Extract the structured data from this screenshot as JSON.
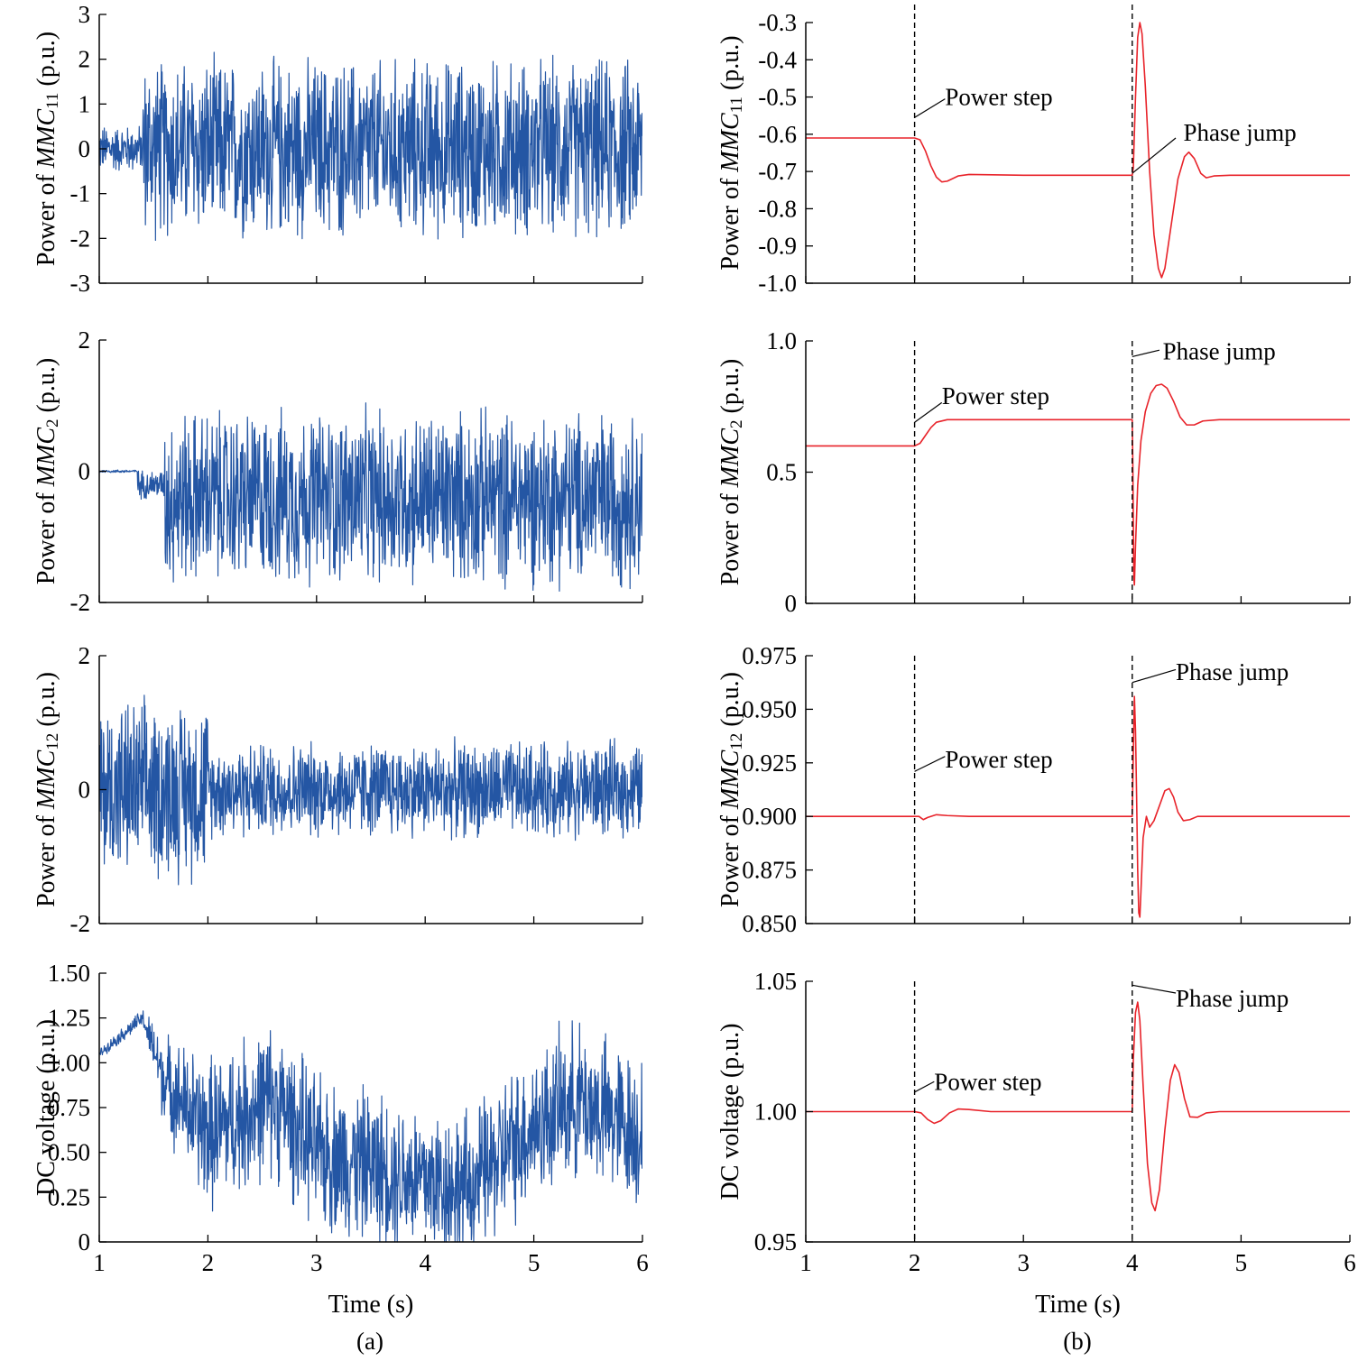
{
  "figure": {
    "panel_labels": [
      "(a)",
      "(b)"
    ],
    "colors": {
      "left_series": "#2456a4",
      "right_series": "#e8232a",
      "axis": "#000000"
    }
  },
  "chart_data": [
    {
      "type": "line",
      "id": "a1",
      "ylabel_prefix": "Power of ",
      "ylabel_italic": "MMC",
      "ylabel_sub": "11",
      "ylabel_suffix": " (p.u.)",
      "xlabel": "",
      "xlim": [
        1,
        6
      ],
      "ylim": [
        -3,
        3
      ],
      "xticks": [
        1,
        2,
        3,
        4,
        5,
        6
      ],
      "xtick_labels_shown": false,
      "yticks": [
        -3,
        -2,
        -1,
        0,
        1,
        2,
        3
      ],
      "ytick_labels": [
        "-3",
        "-2",
        "-1",
        "0",
        "1",
        "2",
        "3"
      ],
      "color": "#2456a4",
      "noise": {
        "segments": [
          {
            "x": [
              1.0,
              1.4
            ],
            "mean": 0.0,
            "amp": 1.2,
            "min": -1.8,
            "max": 1.5
          },
          {
            "x": [
              1.4,
              6.0
            ],
            "mean": 0.0,
            "amp": 4.5,
            "min": -2.8,
            "max": 2.8
          }
        ]
      }
    },
    {
      "type": "line",
      "id": "a2",
      "ylabel_prefix": "Power of ",
      "ylabel_italic": "MMC",
      "ylabel_sub": "2",
      "ylabel_suffix": " (p.u.)",
      "xlabel": "",
      "xlim": [
        1,
        6
      ],
      "ylim": [
        -2,
        2
      ],
      "xticks": [
        1,
        2,
        3,
        4,
        5,
        6
      ],
      "xtick_labels_shown": false,
      "yticks": [
        -2,
        0,
        2
      ],
      "ytick_labels": [
        "-2",
        "0",
        "2"
      ],
      "color": "#2456a4",
      "noise": {
        "segments": [
          {
            "x": [
              1.0,
              1.35
            ],
            "mean": 0.0,
            "amp": 0.05,
            "min": -2,
            "max": 2
          },
          {
            "x": [
              1.35,
              1.6
            ],
            "mean": -0.2,
            "amp": 0.5,
            "min": -2,
            "max": 2
          },
          {
            "x": [
              1.6,
              6.0
            ],
            "mean": -0.4,
            "amp": 3.0,
            "min": -2,
            "max": 2
          }
        ]
      }
    },
    {
      "type": "line",
      "id": "a3",
      "ylabel_prefix": "Power of ",
      "ylabel_italic": "MMC",
      "ylabel_sub": "12",
      "ylabel_suffix": " (p.u.)",
      "xlabel": "",
      "xlim": [
        1,
        6
      ],
      "ylim": [
        -2,
        2
      ],
      "xticks": [
        1,
        2,
        3,
        4,
        5,
        6
      ],
      "xtick_labels_shown": false,
      "yticks": [
        -2,
        0,
        2
      ],
      "ytick_labels": [
        "-2",
        "0",
        "2"
      ],
      "color": "#2456a4",
      "noise": {
        "segments": [
          {
            "x": [
              1.0,
              2.0
            ],
            "mean": 0.0,
            "amp": 3.0,
            "min": -2,
            "max": 2
          },
          {
            "x": [
              2.0,
              6.0
            ],
            "mean": 0.0,
            "amp": 1.6,
            "min": -2,
            "max": 2
          }
        ]
      }
    },
    {
      "type": "line",
      "id": "a4",
      "ylabel_prefix": "DC voltage (p.u.)",
      "ylabel_italic": "",
      "ylabel_sub": "",
      "ylabel_suffix": "",
      "xlabel": "Time (s)",
      "xlim": [
        1,
        6
      ],
      "ylim": [
        0,
        1.5
      ],
      "xticks": [
        1,
        2,
        3,
        4,
        5,
        6
      ],
      "xtick_labels_shown": true,
      "xtick_labels": [
        "1",
        "2",
        "3",
        "4",
        "5",
        "6"
      ],
      "yticks": [
        0,
        0.25,
        0.5,
        0.75,
        1.0,
        1.25,
        1.5
      ],
      "ytick_labels": [
        "0",
        "0.25",
        "0.50",
        "0.75",
        "1.00",
        "1.25",
        "1.50"
      ],
      "color": "#2456a4",
      "noise": {
        "trend": [
          [
            1.0,
            1.05
          ],
          [
            1.4,
            1.25
          ],
          [
            1.6,
            0.9
          ],
          [
            2.0,
            0.6
          ],
          [
            2.6,
            0.8
          ],
          [
            3.0,
            0.5
          ],
          [
            4.0,
            0.35
          ],
          [
            4.4,
            0.3
          ],
          [
            5.0,
            0.65
          ],
          [
            5.4,
            0.8
          ],
          [
            6.0,
            0.6
          ]
        ],
        "amp_points": [
          [
            1.0,
            0.03
          ],
          [
            1.4,
            0.06
          ],
          [
            1.6,
            0.3
          ],
          [
            2.0,
            0.5
          ],
          [
            6.0,
            0.5
          ]
        ],
        "min": 0.0,
        "max": 1.35
      }
    },
    {
      "type": "line",
      "id": "b1",
      "ylabel_prefix": "Power of ",
      "ylabel_italic": "MMC",
      "ylabel_sub": "11",
      "ylabel_suffix": " (p.u.)",
      "xlabel": "",
      "xlim": [
        1,
        6
      ],
      "ylim": [
        -1.0,
        -0.3
      ],
      "xticks": [
        1,
        2,
        3,
        4,
        5,
        6
      ],
      "xtick_labels_shown": false,
      "yticks": [
        -1.0,
        -0.9,
        -0.8,
        -0.7,
        -0.6,
        -0.5,
        -0.4,
        -0.3
      ],
      "ytick_labels": [
        "-1.0",
        "-0.9",
        "-0.8",
        "-0.7",
        "-0.6",
        "-0.5",
        "-0.4",
        "-0.3"
      ],
      "color": "#e8232a",
      "points": [
        [
          1.0,
          -0.61
        ],
        [
          2.0,
          -0.61
        ],
        [
          2.05,
          -0.615
        ],
        [
          2.1,
          -0.645
        ],
        [
          2.15,
          -0.685
        ],
        [
          2.2,
          -0.715
        ],
        [
          2.25,
          -0.728
        ],
        [
          2.3,
          -0.726
        ],
        [
          2.4,
          -0.712
        ],
        [
          2.5,
          -0.708
        ],
        [
          3.0,
          -0.71
        ],
        [
          4.0,
          -0.71
        ],
        [
          4.01,
          -0.69
        ],
        [
          4.03,
          -0.5
        ],
        [
          4.05,
          -0.34
        ],
        [
          4.07,
          -0.3
        ],
        [
          4.09,
          -0.33
        ],
        [
          4.12,
          -0.47
        ],
        [
          4.16,
          -0.7
        ],
        [
          4.2,
          -0.87
        ],
        [
          4.24,
          -0.96
        ],
        [
          4.27,
          -0.985
        ],
        [
          4.3,
          -0.96
        ],
        [
          4.35,
          -0.86
        ],
        [
          4.42,
          -0.72
        ],
        [
          4.48,
          -0.66
        ],
        [
          4.52,
          -0.648
        ],
        [
          4.57,
          -0.665
        ],
        [
          4.63,
          -0.705
        ],
        [
          4.68,
          -0.717
        ],
        [
          4.75,
          -0.712
        ],
        [
          4.9,
          -0.71
        ],
        [
          6.0,
          -0.71
        ]
      ],
      "vlines": [
        2,
        4
      ],
      "annotations": [
        {
          "text": "Power step",
          "x": 2.28,
          "y": -0.5,
          "leader": [
            [
              2.0,
              -0.555
            ],
            [
              2.28,
              -0.505
            ]
          ]
        },
        {
          "text": "Phase jump",
          "x": 4.47,
          "y": -0.595,
          "leader": [
            [
              4.0,
              -0.705
            ],
            [
              4.4,
              -0.61
            ]
          ]
        }
      ]
    },
    {
      "type": "line",
      "id": "b2",
      "ylabel_prefix": "Power of ",
      "ylabel_italic": "MMC",
      "ylabel_sub": "2",
      "ylabel_suffix": " (p.u.)",
      "xlabel": "",
      "xlim": [
        1,
        6
      ],
      "ylim": [
        0,
        1.0
      ],
      "xticks": [
        1,
        2,
        3,
        4,
        5,
        6
      ],
      "xtick_labels_shown": false,
      "yticks": [
        0,
        0.5,
        1.0
      ],
      "ytick_labels": [
        "0",
        "0.5",
        "1.0"
      ],
      "color": "#e8232a",
      "points": [
        [
          1.0,
          0.6
        ],
        [
          2.0,
          0.6
        ],
        [
          2.05,
          0.61
        ],
        [
          2.1,
          0.64
        ],
        [
          2.15,
          0.67
        ],
        [
          2.2,
          0.69
        ],
        [
          2.3,
          0.7
        ],
        [
          3.0,
          0.7
        ],
        [
          4.0,
          0.7
        ],
        [
          4.005,
          0.55
        ],
        [
          4.01,
          0.3
        ],
        [
          4.015,
          0.1
        ],
        [
          4.02,
          0.07
        ],
        [
          4.03,
          0.22
        ],
        [
          4.05,
          0.45
        ],
        [
          4.08,
          0.62
        ],
        [
          4.12,
          0.73
        ],
        [
          4.17,
          0.8
        ],
        [
          4.22,
          0.83
        ],
        [
          4.27,
          0.835
        ],
        [
          4.32,
          0.82
        ],
        [
          4.38,
          0.77
        ],
        [
          4.44,
          0.71
        ],
        [
          4.5,
          0.68
        ],
        [
          4.57,
          0.68
        ],
        [
          4.65,
          0.695
        ],
        [
          4.8,
          0.7
        ],
        [
          6.0,
          0.7
        ]
      ],
      "vlines": [
        2,
        4
      ],
      "annotations": [
        {
          "text": "Power step",
          "x": 2.25,
          "y": 0.79,
          "leader": [
            [
              2.0,
              0.69
            ],
            [
              2.25,
              0.765
            ]
          ]
        },
        {
          "text": "Phase jump",
          "x": 4.28,
          "y": 0.96,
          "leader": [
            [
              4.0,
              0.94
            ],
            [
              4.25,
              0.965
            ]
          ]
        }
      ]
    },
    {
      "type": "line",
      "id": "b3",
      "ylabel_prefix": "Power of ",
      "ylabel_italic": "MMC",
      "ylabel_sub": "12",
      "ylabel_suffix": " (p.u.)",
      "xlabel": "",
      "xlim": [
        1,
        6
      ],
      "ylim": [
        0.85,
        0.975
      ],
      "xticks": [
        1,
        2,
        3,
        4,
        5,
        6
      ],
      "xtick_labels_shown": false,
      "yticks": [
        0.85,
        0.875,
        0.9,
        0.925,
        0.95,
        0.975
      ],
      "ytick_labels": [
        "0.850",
        "0.875",
        "0.900",
        "0.925",
        "0.950",
        "0.975"
      ],
      "color": "#e8232a",
      "points": [
        [
          1.0,
          0.9
        ],
        [
          2.0,
          0.9
        ],
        [
          2.04,
          0.9
        ],
        [
          2.08,
          0.8985
        ],
        [
          2.12,
          0.8995
        ],
        [
          2.2,
          0.9008
        ],
        [
          2.3,
          0.9004
        ],
        [
          2.5,
          0.9
        ],
        [
          4.0,
          0.9
        ],
        [
          4.01,
          0.93
        ],
        [
          4.02,
          0.956
        ],
        [
          4.03,
          0.94
        ],
        [
          4.04,
          0.91
        ],
        [
          4.05,
          0.875
        ],
        [
          4.06,
          0.855
        ],
        [
          4.07,
          0.853
        ],
        [
          4.08,
          0.865
        ],
        [
          4.1,
          0.89
        ],
        [
          4.13,
          0.9
        ],
        [
          4.16,
          0.895
        ],
        [
          4.2,
          0.898
        ],
        [
          4.25,
          0.905
        ],
        [
          4.3,
          0.912
        ],
        [
          4.34,
          0.913
        ],
        [
          4.38,
          0.909
        ],
        [
          4.42,
          0.902
        ],
        [
          4.47,
          0.898
        ],
        [
          4.53,
          0.8985
        ],
        [
          4.6,
          0.9
        ],
        [
          4.8,
          0.9
        ],
        [
          6.0,
          0.9
        ]
      ],
      "vlines": [
        2,
        4
      ],
      "annotations": [
        {
          "text": "Power step",
          "x": 2.28,
          "y": 0.9265,
          "leader": [
            [
              2.0,
              0.921
            ],
            [
              2.28,
              0.928
            ]
          ]
        },
        {
          "text": "Phase jump",
          "x": 4.4,
          "y": 0.9675,
          "leader": [
            [
              4.0,
              0.9625
            ],
            [
              4.4,
              0.9685
            ]
          ]
        }
      ]
    },
    {
      "type": "line",
      "id": "b4",
      "ylabel_prefix": "DC voltage (p.u.)",
      "ylabel_italic": "",
      "ylabel_sub": "",
      "ylabel_suffix": "",
      "xlabel": "Time (s)",
      "xlim": [
        1,
        6
      ],
      "ylim": [
        0.95,
        1.05
      ],
      "xticks": [
        1,
        2,
        3,
        4,
        5,
        6
      ],
      "xtick_labels_shown": true,
      "xtick_labels": [
        "1",
        "2",
        "3",
        "4",
        "5",
        "6"
      ],
      "yticks": [
        0.95,
        1.0,
        1.05
      ],
      "ytick_labels": [
        "0.95",
        "1.00",
        "1.05"
      ],
      "color": "#e8232a",
      "points": [
        [
          1.0,
          1.0
        ],
        [
          2.0,
          1.0
        ],
        [
          2.06,
          0.9995
        ],
        [
          2.12,
          0.997
        ],
        [
          2.18,
          0.9955
        ],
        [
          2.24,
          0.9965
        ],
        [
          2.32,
          0.9995
        ],
        [
          2.4,
          1.001
        ],
        [
          2.5,
          1.0008
        ],
        [
          2.7,
          1.0
        ],
        [
          4.0,
          1.0
        ],
        [
          4.01,
          1.02
        ],
        [
          4.03,
          1.038
        ],
        [
          4.05,
          1.042
        ],
        [
          4.07,
          1.035
        ],
        [
          4.1,
          1.01
        ],
        [
          4.14,
          0.98
        ],
        [
          4.18,
          0.965
        ],
        [
          4.21,
          0.962
        ],
        [
          4.25,
          0.97
        ],
        [
          4.3,
          0.993
        ],
        [
          4.35,
          1.012
        ],
        [
          4.39,
          1.018
        ],
        [
          4.43,
          1.015
        ],
        [
          4.48,
          1.005
        ],
        [
          4.53,
          0.998
        ],
        [
          4.6,
          0.9978
        ],
        [
          4.68,
          0.9995
        ],
        [
          4.8,
          1.0
        ],
        [
          6.0,
          1.0
        ]
      ],
      "vlines": [
        2,
        4
      ],
      "annotations": [
        {
          "text": "Power step",
          "x": 2.18,
          "y": 1.0115,
          "leader": [
            [
              2.0,
              1.0075
            ],
            [
              2.18,
              1.0115
            ]
          ]
        },
        {
          "text": "Phase jump",
          "x": 4.4,
          "y": 1.0435,
          "leader": [
            [
              4.0,
              1.0485
            ],
            [
              4.4,
              1.0455
            ]
          ]
        }
      ]
    }
  ]
}
